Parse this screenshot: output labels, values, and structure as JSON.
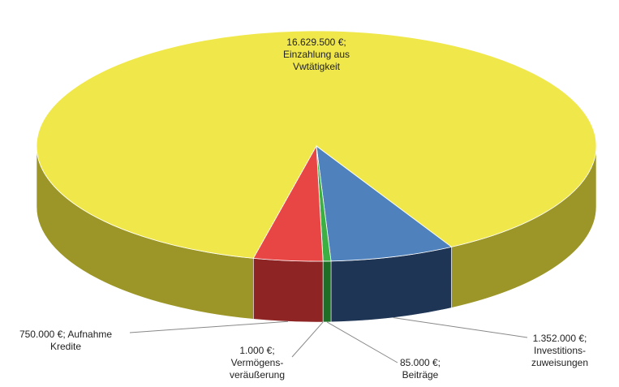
{
  "chart_data": {
    "type": "pie3d",
    "categories": [
      "Einzahlung aus Vwtätigkeit",
      "Investitions-zuweisungen",
      "Beiträge",
      "Vermögens-veräußerung",
      "Aufnahme Kredite"
    ],
    "values": [
      16629500,
      1352000,
      85000,
      1000,
      750000
    ],
    "value_labels": [
      "16.629.500 €;",
      "1.352.000 €;",
      "85.000 €;",
      "1.000 €;",
      "750.000 €;"
    ],
    "colors": [
      "#f0e84a",
      "#4f81bd",
      "#3cb043",
      "#2e7d32",
      "#e84545"
    ],
    "side_colors": [
      "#9c9628",
      "#1e3556",
      "#1e6e25",
      "#1e5a22",
      "#8e2424"
    ]
  }
}
